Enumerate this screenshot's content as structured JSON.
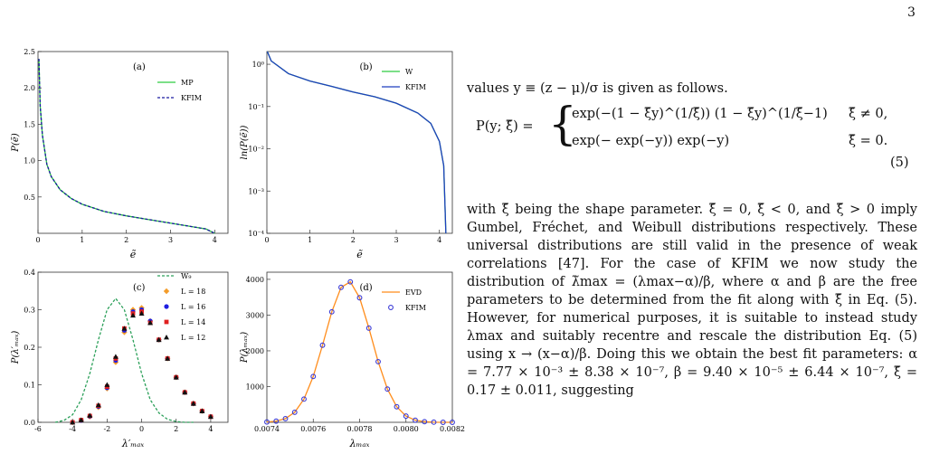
{
  "page_number": "3",
  "chart_data": [
    {
      "type": "line",
      "panel_label": "(a)",
      "xlabel": "ẽ",
      "ylabel": "P(ẽ)",
      "legend": "upper right",
      "xlim": [
        0,
        4.3
      ],
      "ylim": [
        0,
        2.5
      ],
      "xticks": [
        0,
        1,
        2,
        3,
        4
      ],
      "yticks": [
        0.5,
        {
          "value": 1,
          "label": "1.0"
        },
        1.5,
        {
          "value": 2,
          "label": "2.0"
        },
        2.5
      ],
      "log_y": false,
      "series": [
        {
          "name": "MP",
          "color": "#2ecc40",
          "dash": false,
          "marker": null,
          "x": [
            0.02,
            0.05,
            0.1,
            0.2,
            0.3,
            0.5,
            0.75,
            1,
            1.5,
            2,
            2.5,
            3,
            3.5,
            3.8,
            4.0
          ],
          "values": [
            2.4,
            1.75,
            1.35,
            0.95,
            0.78,
            0.6,
            0.48,
            0.4,
            0.3,
            0.24,
            0.19,
            0.14,
            0.09,
            0.06,
            0.0
          ]
        },
        {
          "name": "KFIM",
          "color": "#1a1aa0",
          "dash": true,
          "marker": null,
          "x": [
            0.02,
            0.05,
            0.1,
            0.2,
            0.3,
            0.5,
            0.75,
            1,
            1.5,
            2,
            2.5,
            3,
            3.5,
            3.8,
            4.0
          ],
          "values": [
            2.4,
            1.75,
            1.35,
            0.95,
            0.78,
            0.6,
            0.48,
            0.4,
            0.3,
            0.24,
            0.19,
            0.14,
            0.09,
            0.06,
            0.0
          ]
        }
      ]
    },
    {
      "type": "line",
      "panel_label": "(b)",
      "xlabel": "ẽ",
      "ylabel": "ln(P(ẽ))",
      "legend": "upper right",
      "xlim": [
        0,
        4.3
      ],
      "ylim": [
        0.0001,
        2
      ],
      "xticks": [
        0,
        1,
        2,
        3,
        4
      ],
      "yticks": [
        {
          "value": 1,
          "label": "10⁰"
        },
        {
          "value": 0.1,
          "label": "10⁻¹"
        },
        {
          "value": 0.01,
          "label": "10⁻²"
        },
        {
          "value": 0.001,
          "label": "10⁻³"
        },
        {
          "value": 0.0001,
          "label": "10⁻⁴"
        }
      ],
      "log_y": true,
      "series": [
        {
          "name": "W",
          "color": "#2ecc40",
          "dash": false,
          "marker": null,
          "x": [
            0.01,
            0.1,
            0.5,
            1,
            1.5,
            2,
            2.5,
            3,
            3.5,
            3.8,
            4,
            4.1,
            4.15
          ],
          "values": [
            2,
            1.2,
            0.6,
            0.4,
            0.3,
            0.22,
            0.17,
            0.12,
            0.07,
            0.04,
            0.015,
            0.004,
            0.0001
          ]
        },
        {
          "name": "KFIM",
          "color": "#1f3fbf",
          "dash": false,
          "marker": null,
          "x": [
            0.01,
            0.1,
            0.5,
            1,
            1.5,
            2,
            2.5,
            3,
            3.5,
            3.8,
            4,
            4.1,
            4.15
          ],
          "values": [
            2,
            1.2,
            0.6,
            0.4,
            0.3,
            0.22,
            0.17,
            0.12,
            0.07,
            0.04,
            0.015,
            0.004,
            0.0001
          ]
        }
      ]
    },
    {
      "type": "scatter",
      "panel_label": "(c)",
      "xlabel": "λ′ₘₐₓ",
      "ylabel": "P(λ′ₘₐₓ)",
      "legend": "upper right",
      "xlim": [
        -6,
        5
      ],
      "ylim": [
        0,
        0.4
      ],
      "xticks": [
        -6,
        -4,
        -2,
        0,
        2,
        4
      ],
      "yticks": [
        {
          "value": 0,
          "label": "0.0"
        },
        0.1,
        0.2,
        0.3,
        0.4
      ],
      "log_y": false,
      "series": [
        {
          "name": "W₉",
          "color": "#2ca05a",
          "dash": true,
          "marker": null,
          "x": [
            -5,
            -4.5,
            -4,
            -3.5,
            -3,
            -2.5,
            -2,
            -1.5,
            -1,
            -0.5,
            0,
            0.5,
            1,
            1.5,
            2,
            2.5,
            3
          ],
          "values": [
            0.0,
            0.005,
            0.02,
            0.06,
            0.13,
            0.22,
            0.3,
            0.33,
            0.3,
            0.22,
            0.13,
            0.06,
            0.025,
            0.008,
            0.002,
            0,
            0
          ]
        },
        {
          "name": "L = 18",
          "color": "#f39c2a",
          "dash": false,
          "marker": "diamond",
          "x": [
            -4,
            -3.5,
            -3,
            -2.5,
            -2,
            -1.5,
            -1,
            -0.5,
            0,
            0.5,
            1,
            1.5,
            2,
            2.5,
            3,
            3.5,
            4
          ],
          "values": [
            0.0,
            0.005,
            0.015,
            0.04,
            0.09,
            0.16,
            0.24,
            0.3,
            0.305,
            0.27,
            0.22,
            0.17,
            0.12,
            0.08,
            0.05,
            0.03,
            0.015
          ]
        },
        {
          "name": "L = 16",
          "color": "#1f1fe0",
          "dash": false,
          "marker": "circle",
          "x": [
            -4,
            -3.5,
            -3,
            -2.5,
            -2,
            -1.5,
            -1,
            -0.5,
            0,
            0.5,
            1,
            1.5,
            2,
            2.5,
            3,
            3.5,
            4
          ],
          "values": [
            0.0,
            0.005,
            0.016,
            0.042,
            0.092,
            0.165,
            0.245,
            0.295,
            0.3,
            0.27,
            0.22,
            0.17,
            0.12,
            0.08,
            0.05,
            0.03,
            0.015
          ]
        },
        {
          "name": "L = 14",
          "color": "#e02020",
          "dash": false,
          "marker": "square",
          "x": [
            -4,
            -3.5,
            -3,
            -2.5,
            -2,
            -1.5,
            -1,
            -0.5,
            0,
            0.5,
            1,
            1.5,
            2,
            2.5,
            3,
            3.5,
            4
          ],
          "values": [
            0.0,
            0.006,
            0.017,
            0.044,
            0.095,
            0.17,
            0.25,
            0.29,
            0.295,
            0.265,
            0.22,
            0.17,
            0.12,
            0.08,
            0.05,
            0.03,
            0.015
          ]
        },
        {
          "name": "L = 12",
          "color": "#111111",
          "dash": false,
          "marker": "triangle",
          "x": [
            -4,
            -3.5,
            -3,
            -2.5,
            -2,
            -1.5,
            -1,
            -0.5,
            0,
            0.5,
            1,
            1.5,
            2,
            2.5,
            3,
            3.5,
            4
          ],
          "values": [
            0.0,
            0.006,
            0.018,
            0.046,
            0.1,
            0.175,
            0.25,
            0.285,
            0.29,
            0.265,
            0.22,
            0.17,
            0.12,
            0.08,
            0.05,
            0.03,
            0.015
          ]
        }
      ]
    },
    {
      "type": "scatter",
      "panel_label": "(d)",
      "xlabel": "λₘₐₓ",
      "ylabel": "P(λₘₐₓ)",
      "legend": "upper right",
      "xlim": [
        0.0074,
        0.0082
      ],
      "ylim": [
        0,
        4200
      ],
      "xticks": [
        0.0074,
        0.0076,
        0.0078,
        {
          "value": 0.008,
          "label": "0.0080"
        },
        0.0082
      ],
      "yticks": [
        1000,
        2000,
        3000,
        4000
      ],
      "log_y": false,
      "series": [
        {
          "name": "EVD",
          "color": "#ff8c1a",
          "dash": false,
          "marker": null,
          "x": [
            0.0074,
            0.00744,
            0.00748,
            0.00752,
            0.00756,
            0.0076,
            0.00764,
            0.00768,
            0.00772,
            0.00776,
            0.0078,
            0.00784,
            0.00788,
            0.00792,
            0.00796,
            0.008,
            0.00804,
            0.00808,
            0.00812,
            0.00816,
            0.0082
          ],
          "values": [
            9,
            32,
            103,
            280,
            649,
            1283,
            2157,
            3092,
            3776,
            3930,
            3485,
            2635,
            1697,
            931,
            436,
            174,
            59,
            17,
            4,
            0,
            0
          ]
        },
        {
          "name": "KFIM",
          "color": "#3b3bd6",
          "dash": false,
          "marker": "circle-open",
          "x": [
            0.0074,
            0.00744,
            0.00748,
            0.00752,
            0.00756,
            0.0076,
            0.00764,
            0.00768,
            0.00772,
            0.00776,
            0.0078,
            0.00784,
            0.00788,
            0.00792,
            0.00796,
            0.008,
            0.00804,
            0.00808,
            0.00812,
            0.00816,
            0.0082
          ],
          "values": [
            9,
            32,
            103,
            280,
            649,
            1283,
            2157,
            3092,
            3776,
            3930,
            3485,
            2635,
            1697,
            931,
            436,
            174,
            59,
            17,
            4,
            0,
            0
          ]
        }
      ]
    }
  ],
  "text": {
    "intro": "values y ≡ (z − μ)/σ is given as follows.",
    "equation": {
      "lhs": "P(y; ξ̃) =",
      "case1": "exp(−(1 − ξ̃y)^(1/ξ̃)) (1 − ξ̃y)^(1/ξ̃−1)",
      "cond1": "ξ̃ ≠ 0,",
      "case2": "exp(− exp(−y)) exp(−y)",
      "cond2": "ξ̃ = 0.",
      "number": "(5)"
    },
    "paragraph": "with ξ̃ being the shape parameter. ξ̃ = 0, ξ̃ < 0, and ξ̃ > 0 imply Gumbel, Fréchet, and Weibull distributions respectively. These universal distributions are still valid in the presence of weak correlations [47]. For the case of KFIM we now study the distribution of λ̃max = (λmax−α)/β, where α and β are the free parameters to be determined from the fit along with ξ̃ in Eq. (5). However, for numerical purposes, it is suitable to instead study λmax and suitably recentre and rescale the distribution Eq. (5) using x → (x−α)/β. Doing this we obtain the best fit parameters: α = 7.77 × 10⁻³ ± 8.38 × 10⁻⁷, β = 9.40 × 10⁻⁵ ± 6.44 × 10⁻⁷, ξ̃ = 0.17 ± 0.011, suggesting"
  }
}
